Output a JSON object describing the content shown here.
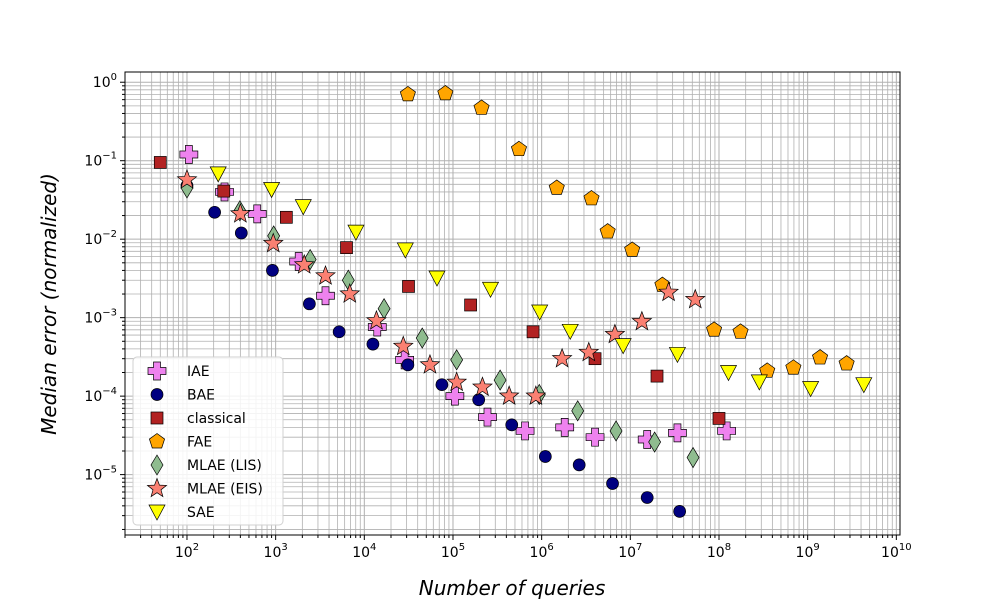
{
  "chart_data": {
    "type": "scatter",
    "title": "",
    "xlabel": "Number of queries",
    "ylabel": "Median error (normalized)",
    "xscale": "log",
    "yscale": "log",
    "xlim": [
      20,
      11000000000
    ],
    "ylim": [
      1.7e-06,
      1.35
    ],
    "grid": "major-and-minor",
    "legend_position": "lower-left",
    "x_ticks": [
      {
        "value": 100,
        "base": "10",
        "exp": "2"
      },
      {
        "value": 1000,
        "base": "10",
        "exp": "3"
      },
      {
        "value": 10000,
        "base": "10",
        "exp": "4"
      },
      {
        "value": 100000,
        "base": "10",
        "exp": "5"
      },
      {
        "value": 1000000,
        "base": "10",
        "exp": "6"
      },
      {
        "value": 10000000,
        "base": "10",
        "exp": "7"
      },
      {
        "value": 100000000,
        "base": "10",
        "exp": "8"
      },
      {
        "value": 1000000000,
        "base": "10",
        "exp": "9"
      },
      {
        "value": 10000000000,
        "base": "10",
        "exp": "10"
      }
    ],
    "y_ticks": [
      {
        "value": 1e-05,
        "base": "10",
        "exp": "−5"
      },
      {
        "value": 0.0001,
        "base": "10",
        "exp": "−4"
      },
      {
        "value": 0.001,
        "base": "10",
        "exp": "−3"
      },
      {
        "value": 0.01,
        "base": "10",
        "exp": "−2"
      },
      {
        "value": 0.1,
        "base": "10",
        "exp": "−1"
      },
      {
        "value": 1,
        "base": "10",
        "exp": "0"
      }
    ],
    "series": [
      {
        "name": "IAE",
        "marker": "plus",
        "color": "#ee82ee",
        "points": [
          [
            105,
            0.12
          ],
          [
            265,
            0.04
          ],
          [
            620,
            0.021
          ],
          [
            1820,
            0.0052
          ],
          [
            3650,
            0.0019
          ],
          [
            14000,
            0.00076
          ],
          [
            28500,
            0.00029
          ],
          [
            105000,
            0.0001
          ],
          [
            245000,
            5.4e-05
          ],
          [
            650000,
            3.6e-05
          ],
          [
            1820000,
            4e-05
          ],
          [
            4000000,
            3e-05
          ],
          [
            15500000,
            2.8e-05
          ],
          [
            34000000,
            3.4e-05
          ],
          [
            122000000,
            3.6e-05
          ]
        ]
      },
      {
        "name": "BAE",
        "marker": "circle",
        "color": "#000080",
        "points": [
          [
            100,
            0.048
          ],
          [
            205,
            0.022
          ],
          [
            410,
            0.012
          ],
          [
            920,
            0.004
          ],
          [
            2400,
            0.0015
          ],
          [
            5200,
            0.00066
          ],
          [
            12500,
            0.00046
          ],
          [
            31000,
            0.00025
          ],
          [
            75000,
            0.00014
          ],
          [
            195000,
            9e-05
          ],
          [
            460000,
            4.3e-05
          ],
          [
            1100000,
            1.7e-05
          ],
          [
            2650000,
            1.33e-05
          ],
          [
            6300000,
            7.7e-06
          ],
          [
            15500000,
            5.1e-06
          ],
          [
            36000000,
            3.4e-06
          ]
        ]
      },
      {
        "name": "classical",
        "marker": "square",
        "color": "#b22222",
        "points": [
          [
            50,
            0.095
          ],
          [
            260,
            0.041
          ],
          [
            1320,
            0.019
          ],
          [
            6300,
            0.0078
          ],
          [
            31500,
            0.0025
          ],
          [
            158000,
            0.00145
          ],
          [
            800000,
            0.00066
          ],
          [
            4000000,
            0.0003
          ],
          [
            20000000,
            0.00018
          ],
          [
            100000000,
            5.2e-05
          ]
        ]
      },
      {
        "name": "FAE",
        "marker": "pentagon",
        "color": "#ffa500",
        "points": [
          [
            31000,
            0.7
          ],
          [
            82000,
            0.72
          ],
          [
            210000,
            0.47
          ],
          [
            555000,
            0.14
          ],
          [
            1480000,
            0.045
          ],
          [
            3650000,
            0.033
          ],
          [
            5550000,
            0.0125
          ],
          [
            10500000,
            0.0073
          ],
          [
            23000000,
            0.0026
          ],
          [
            88000000,
            0.0007
          ],
          [
            175000000,
            0.00066
          ],
          [
            350000000,
            0.00021
          ],
          [
            690000000,
            0.00023
          ],
          [
            1380000000,
            0.00031
          ],
          [
            2750000000,
            0.00026
          ]
        ]
      },
      {
        "name": "MLAE (LIS)",
        "marker": "diamond",
        "color": "#8fbc8f",
        "points": [
          [
            100,
            0.045
          ],
          [
            395,
            0.023
          ],
          [
            950,
            0.011
          ],
          [
            2450,
            0.0055
          ],
          [
            6600,
            0.003
          ],
          [
            16700,
            0.0013
          ],
          [
            45000,
            0.00055
          ],
          [
            110000,
            0.00029
          ],
          [
            340000,
            0.00016
          ],
          [
            940000,
            0.000105
          ],
          [
            2550000,
            6.5e-05
          ],
          [
            6900000,
            3.6e-05
          ],
          [
            18800000,
            2.6e-05
          ],
          [
            51000000,
            1.65e-05
          ]
        ]
      },
      {
        "name": "MLAE (EIS)",
        "marker": "star",
        "color": "#fa8072",
        "points": [
          [
            100,
            0.057
          ],
          [
            400,
            0.021
          ],
          [
            940,
            0.0088
          ],
          [
            2100,
            0.0047
          ],
          [
            3650,
            0.0034
          ],
          [
            6850,
            0.002
          ],
          [
            13700,
            0.00091
          ],
          [
            27500,
            0.00043
          ],
          [
            55000,
            0.00025
          ],
          [
            110000,
            0.00015
          ],
          [
            215000,
            0.00013
          ],
          [
            430000,
            0.0001
          ],
          [
            860000,
            0.0001
          ],
          [
            1700000,
            0.0003
          ],
          [
            3400000,
            0.00036
          ],
          [
            6700000,
            0.00061
          ],
          [
            13500000,
            0.00089
          ],
          [
            27000000,
            0.0021
          ],
          [
            54000000,
            0.0017
          ]
        ]
      },
      {
        "name": "SAE",
        "marker": "triangle-down",
        "color": "#ffff00",
        "points": [
          [
            225,
            0.068
          ],
          [
            900,
            0.043
          ],
          [
            2050,
            0.026
          ],
          [
            8050,
            0.0123
          ],
          [
            29000,
            0.0073
          ],
          [
            66000,
            0.0032
          ],
          [
            265000,
            0.0023
          ],
          [
            950000,
            0.00118
          ],
          [
            2100000,
            0.00067
          ],
          [
            8300000,
            0.00044
          ],
          [
            34000000,
            0.00034
          ],
          [
            128000000,
            0.0002
          ],
          [
            285000000,
            0.000152
          ],
          [
            1080000000,
            0.000125
          ],
          [
            4300000000,
            0.00014
          ]
        ]
      }
    ]
  }
}
